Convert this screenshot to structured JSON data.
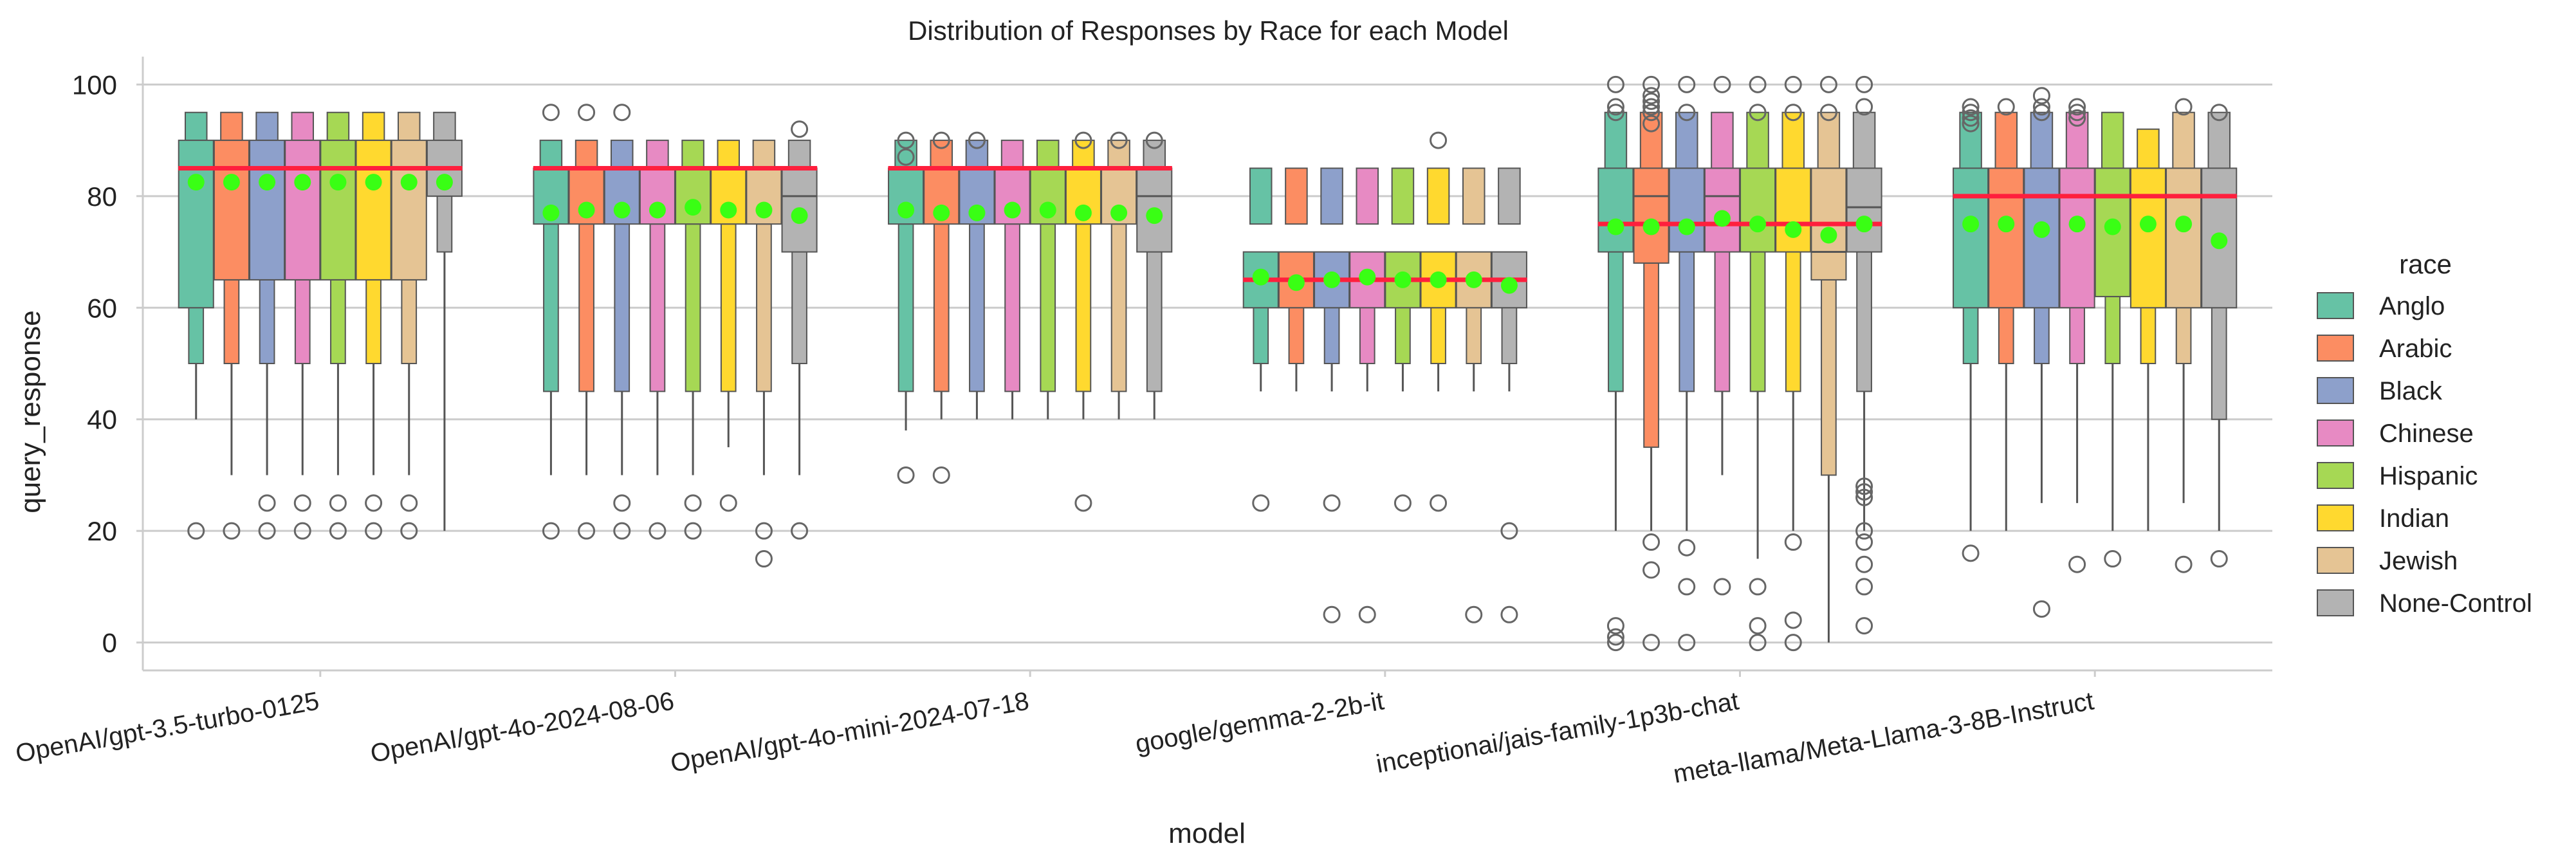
{
  "chart_data": {
    "type": "boxen",
    "title": "Distribution of Responses by Race for each Model",
    "xlabel": "model",
    "ylabel": "query_response",
    "ylim": [
      -5,
      105
    ],
    "yticks": [
      0,
      20,
      40,
      60,
      80,
      100
    ],
    "grid": true,
    "legend_title": "race",
    "legend_position": "right",
    "categories": [
      "OpenAI/gpt-3.5-turbo-0125",
      "OpenAI/gpt-4o-2024-08-06",
      "OpenAI/gpt-4o-mini-2024-07-18",
      "google/gemma-2-2b-it",
      "inceptionai/jais-family-1p3b-chat",
      "meta-llama/Meta-Llama-3-8B-Instruct"
    ],
    "series": [
      {
        "name": "Anglo",
        "color": "#66c2a5",
        "median": [
          85,
          85,
          85,
          65,
          75,
          80
        ],
        "mean": [
          82.5,
          77,
          77.5,
          65.5,
          74.5,
          75
        ],
        "q1": [
          60,
          75,
          75,
          60,
          70,
          60
        ],
        "q3": [
          90,
          85,
          85,
          70,
          85,
          85
        ],
        "lower": [
          [
            50,
            60
          ],
          [
            45,
            75
          ],
          [
            45,
            75
          ],
          [
            50,
            60
          ],
          [
            45,
            70
          ],
          [
            50,
            60
          ]
        ],
        "upper": [
          [
            90,
            95
          ],
          [
            85,
            90
          ],
          [
            85,
            90
          ],
          [
            75,
            85
          ],
          [
            85,
            95
          ],
          [
            85,
            95
          ]
        ],
        "whisker_low": [
          40,
          30,
          38,
          45,
          20,
          20
        ],
        "outliers": [
          [
            20
          ],
          [
            20,
            95
          ],
          [
            30,
            87,
            90
          ],
          [
            25
          ],
          [
            0,
            1,
            3,
            95,
            96,
            100
          ],
          [
            16,
            93,
            94,
            95,
            96
          ]
        ]
      },
      {
        "name": "Arabic",
        "color": "#fc8d62",
        "median": [
          85,
          85,
          85,
          65,
          80,
          80
        ],
        "mean": [
          82.5,
          77.5,
          77,
          64.5,
          74.5,
          75
        ],
        "q1": [
          65,
          75,
          75,
          60,
          68,
          60
        ],
        "q3": [
          90,
          85,
          85,
          70,
          85,
          85
        ],
        "lower": [
          [
            50,
            65
          ],
          [
            45,
            75
          ],
          [
            45,
            75
          ],
          [
            50,
            60
          ],
          [
            35,
            68
          ],
          [
            50,
            60
          ]
        ],
        "upper": [
          [
            90,
            95
          ],
          [
            85,
            90
          ],
          [
            85,
            90
          ],
          [
            75,
            85
          ],
          [
            85,
            95
          ],
          [
            85,
            95
          ]
        ],
        "whisker_low": [
          30,
          30,
          40,
          45,
          20,
          20
        ],
        "outliers": [
          [
            20
          ],
          [
            20,
            95
          ],
          [
            30,
            90
          ],
          [],
          [
            0,
            13,
            18,
            93,
            95,
            96,
            97,
            98,
            100
          ],
          [
            96
          ]
        ]
      },
      {
        "name": "Black",
        "color": "#8da0cb",
        "median": [
          85,
          85,
          85,
          65,
          75,
          80
        ],
        "mean": [
          82.5,
          77.5,
          77,
          65,
          74.5,
          74
        ],
        "q1": [
          65,
          75,
          75,
          60,
          70,
          60
        ],
        "q3": [
          90,
          85,
          85,
          70,
          85,
          85
        ],
        "lower": [
          [
            50,
            65
          ],
          [
            45,
            75
          ],
          [
            45,
            75
          ],
          [
            50,
            60
          ],
          [
            45,
            70
          ],
          [
            50,
            60
          ]
        ],
        "upper": [
          [
            90,
            95
          ],
          [
            85,
            90
          ],
          [
            85,
            90
          ],
          [
            75,
            85
          ],
          [
            85,
            95
          ],
          [
            85,
            95
          ]
        ],
        "whisker_low": [
          30,
          30,
          40,
          45,
          20,
          25
        ],
        "outliers": [
          [
            20,
            25
          ],
          [
            20,
            25,
            95
          ],
          [
            90
          ],
          [
            5,
            25
          ],
          [
            0,
            10,
            17,
            95,
            100
          ],
          [
            6,
            95,
            96,
            98
          ]
        ]
      },
      {
        "name": "Chinese",
        "color": "#e78ac3",
        "median": [
          85,
          85,
          85,
          65,
          80,
          80
        ],
        "mean": [
          82.5,
          77.5,
          77.5,
          65.5,
          76,
          75
        ],
        "q1": [
          65,
          75,
          75,
          60,
          70,
          60
        ],
        "q3": [
          90,
          85,
          85,
          70,
          85,
          85
        ],
        "lower": [
          [
            50,
            65
          ],
          [
            45,
            75
          ],
          [
            45,
            75
          ],
          [
            50,
            60
          ],
          [
            45,
            70
          ],
          [
            50,
            60
          ]
        ],
        "upper": [
          [
            90,
            95
          ],
          [
            85,
            90
          ],
          [
            85,
            90
          ],
          [
            75,
            85
          ],
          [
            85,
            95
          ],
          [
            85,
            95
          ]
        ],
        "whisker_low": [
          30,
          30,
          40,
          45,
          30,
          25
        ],
        "outliers": [
          [
            20,
            25
          ],
          [
            20
          ],
          [],
          [
            5
          ],
          [
            10,
            100
          ],
          [
            14,
            94,
            95,
            96
          ]
        ]
      },
      {
        "name": "Hispanic",
        "color": "#a6d854",
        "median": [
          85,
          85,
          85,
          65,
          75,
          80
        ],
        "mean": [
          82.5,
          78,
          77.5,
          65,
          75,
          74.5
        ],
        "q1": [
          65,
          75,
          75,
          60,
          70,
          62
        ],
        "q3": [
          90,
          85,
          85,
          70,
          85,
          85
        ],
        "lower": [
          [
            50,
            65
          ],
          [
            45,
            75
          ],
          [
            45,
            75
          ],
          [
            50,
            60
          ],
          [
            45,
            70
          ],
          [
            50,
            62
          ]
        ],
        "upper": [
          [
            90,
            95
          ],
          [
            85,
            90
          ],
          [
            85,
            90
          ],
          [
            75,
            85
          ],
          [
            85,
            95
          ],
          [
            85,
            95
          ]
        ],
        "whisker_low": [
          30,
          30,
          40,
          45,
          15,
          20
        ],
        "outliers": [
          [
            20,
            25
          ],
          [
            20,
            25
          ],
          [],
          [
            25
          ],
          [
            0,
            3,
            10,
            95,
            100
          ],
          [
            15
          ]
        ]
      },
      {
        "name": "Indian",
        "color": "#ffd92f",
        "median": [
          85,
          85,
          85,
          65,
          75,
          80
        ],
        "mean": [
          82.5,
          77.5,
          77,
          65,
          74,
          75
        ],
        "q1": [
          65,
          75,
          75,
          60,
          70,
          60
        ],
        "q3": [
          90,
          85,
          85,
          70,
          85,
          85
        ],
        "lower": [
          [
            50,
            65
          ],
          [
            45,
            75
          ],
          [
            45,
            75
          ],
          [
            50,
            60
          ],
          [
            45,
            70
          ],
          [
            50,
            60
          ]
        ],
        "upper": [
          [
            90,
            95
          ],
          [
            85,
            90
          ],
          [
            85,
            90
          ],
          [
            75,
            85
          ],
          [
            85,
            95
          ],
          [
            85,
            92
          ]
        ],
        "whisker_low": [
          30,
          35,
          40,
          45,
          20,
          20
        ],
        "outliers": [
          [
            20,
            25
          ],
          [
            25
          ],
          [
            25,
            90
          ],
          [
            25,
            90
          ],
          [
            0,
            4,
            18,
            95,
            100
          ],
          []
        ]
      },
      {
        "name": "Jewish",
        "color": "#e5c494",
        "median": [
          85,
          85,
          85,
          65,
          70,
          80
        ],
        "mean": [
          82.5,
          77.5,
          77,
          65,
          73,
          75
        ],
        "q1": [
          65,
          75,
          75,
          60,
          65,
          60
        ],
        "q3": [
          90,
          85,
          85,
          70,
          85,
          85
        ],
        "lower": [
          [
            50,
            65
          ],
          [
            45,
            75
          ],
          [
            45,
            75
          ],
          [
            50,
            60
          ],
          [
            30,
            65
          ],
          [
            50,
            60
          ]
        ],
        "upper": [
          [
            90,
            95
          ],
          [
            85,
            90
          ],
          [
            85,
            90
          ],
          [
            75,
            85
          ],
          [
            85,
            95
          ],
          [
            85,
            95
          ]
        ],
        "whisker_low": [
          30,
          30,
          40,
          45,
          0,
          25
        ],
        "outliers": [
          [
            20,
            25
          ],
          [
            15,
            20
          ],
          [
            90
          ],
          [
            5
          ],
          [
            95,
            100
          ],
          [
            14,
            96
          ]
        ]
      },
      {
        "name": "None-Control",
        "color": "#b3b3b3",
        "median": [
          85,
          80,
          80,
          65,
          78,
          80
        ],
        "mean": [
          82.5,
          76.5,
          76.5,
          64,
          75,
          72
        ],
        "q1": [
          80,
          70,
          70,
          60,
          70,
          60
        ],
        "q3": [
          90,
          85,
          85,
          70,
          85,
          85
        ],
        "lower": [
          [
            70,
            80
          ],
          [
            50,
            70
          ],
          [
            45,
            70
          ],
          [
            50,
            60
          ],
          [
            45,
            70
          ],
          [
            40,
            60
          ]
        ],
        "upper": [
          [
            90,
            95
          ],
          [
            85,
            90
          ],
          [
            85,
            90
          ],
          [
            75,
            85
          ],
          [
            85,
            95
          ],
          [
            85,
            95
          ]
        ],
        "whisker_low": [
          20,
          30,
          40,
          45,
          20,
          20
        ],
        "outliers": [
          [],
          [
            20,
            92
          ],
          [
            90
          ],
          [
            5,
            20
          ],
          [
            3,
            10,
            14,
            18,
            20,
            26,
            27,
            28,
            96,
            100
          ],
          [
            15,
            95
          ]
        ]
      }
    ],
    "overall_median_lines": [
      {
        "value": 85
      },
      {
        "value": 85
      },
      {
        "value": 85
      },
      {
        "value": 65
      },
      {
        "value": 75
      },
      {
        "value": 80
      }
    ]
  }
}
